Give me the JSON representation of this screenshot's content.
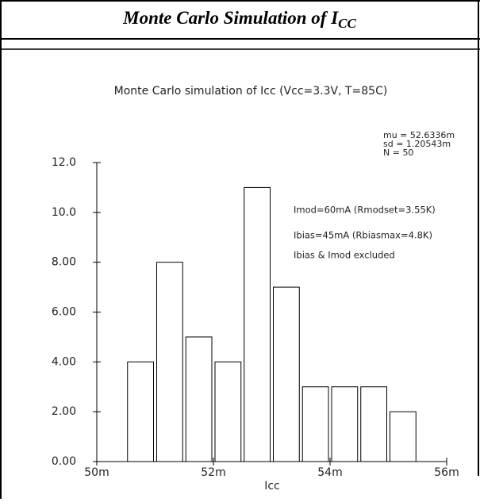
{
  "header": {
    "title": "Monte Carlo Simulation of",
    "symbol": "I",
    "subscript": "CC"
  },
  "chart_data": {
    "type": "histogram",
    "title": "Monte Carlo simulation of Icc (Vcc=3.3V, T=85C)",
    "xlabel": "Icc",
    "stats": [
      "mu = 52.6336m",
      "sd = 1.20543m",
      "N = 50"
    ],
    "annotations": [
      "Imod=60mA (Rmodset=3.55K)",
      "Ibias=45mA (Rbiasmax=4.8K)",
      "Ibias & Imod excluded"
    ],
    "bins": [
      50.5,
      51,
      51.5,
      52,
      52.5,
      53,
      53.5,
      54,
      54.5,
      55,
      55.5
    ],
    "values": [
      4,
      8,
      5,
      4,
      11,
      7,
      3,
      3,
      3,
      2
    ],
    "color": "#ffffff",
    "edgecolor": "#000000",
    "xlim": [
      50,
      56
    ],
    "xticks": [
      {
        "value": 50,
        "label": "50m"
      },
      {
        "value": 52,
        "label": "52m"
      },
      {
        "value": 54,
        "label": "54m"
      },
      {
        "value": 56,
        "label": "56m"
      }
    ],
    "ylim": [
      0,
      12
    ],
    "yticks": [
      {
        "value": 0,
        "label": "0.00"
      },
      {
        "value": 2,
        "label": "2.00"
      },
      {
        "value": 4,
        "label": "4.00"
      },
      {
        "value": 6,
        "label": "6.00"
      },
      {
        "value": 8,
        "label": "8.00"
      },
      {
        "value": 10,
        "label": "10.0"
      },
      {
        "value": 12,
        "label": "12.0"
      }
    ]
  }
}
